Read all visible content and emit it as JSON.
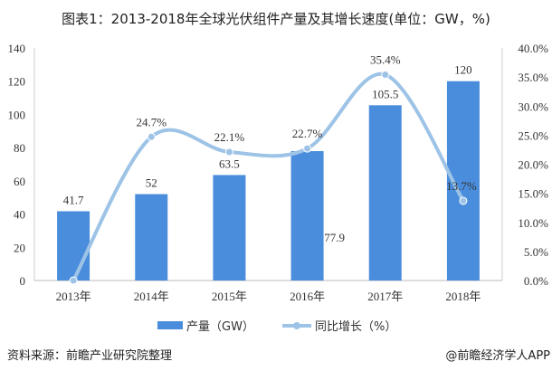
{
  "chart_data": {
    "type": "bar+line",
    "title": "图表1：2013-2018年全球光伏组件产量及其增长速度(单位：GW，%)",
    "categories": [
      "2013年",
      "2014年",
      "2015年",
      "2016年",
      "2017年",
      "2018年"
    ],
    "series": [
      {
        "name": "产量（GW）",
        "type": "bar",
        "axis": "left",
        "values": [
          41.7,
          52,
          63.5,
          77.9,
          105.5,
          120
        ],
        "labels": [
          "41.7",
          "52",
          "63.5",
          "77.9",
          "105.5",
          "120"
        ],
        "color": "#4a8ddc"
      },
      {
        "name": "同比增长（%）",
        "type": "line",
        "axis": "right",
        "values": [
          0,
          24.7,
          22.1,
          22.7,
          35.4,
          13.7
        ],
        "labels": [
          "",
          "24.7%",
          "22.1%",
          "22.7%",
          "35.4%",
          "13.7%"
        ],
        "color": "#9dc3e6"
      }
    ],
    "ylim": [
      0,
      140
    ],
    "yticks": [
      "0",
      "20",
      "40",
      "60",
      "80",
      "100",
      "120",
      "140"
    ],
    "y2lim": [
      0,
      40
    ],
    "y2ticks": [
      "0.0%",
      "5.0%",
      "10.0%",
      "15.0%",
      "20.0%",
      "25.0%",
      "30.0%",
      "35.0%",
      "40.0%"
    ],
    "legend": "bottom"
  },
  "footer": {
    "source": "资料来源：前瞻产业研究院整理",
    "brand": "@前瞻经济学人APP"
  }
}
